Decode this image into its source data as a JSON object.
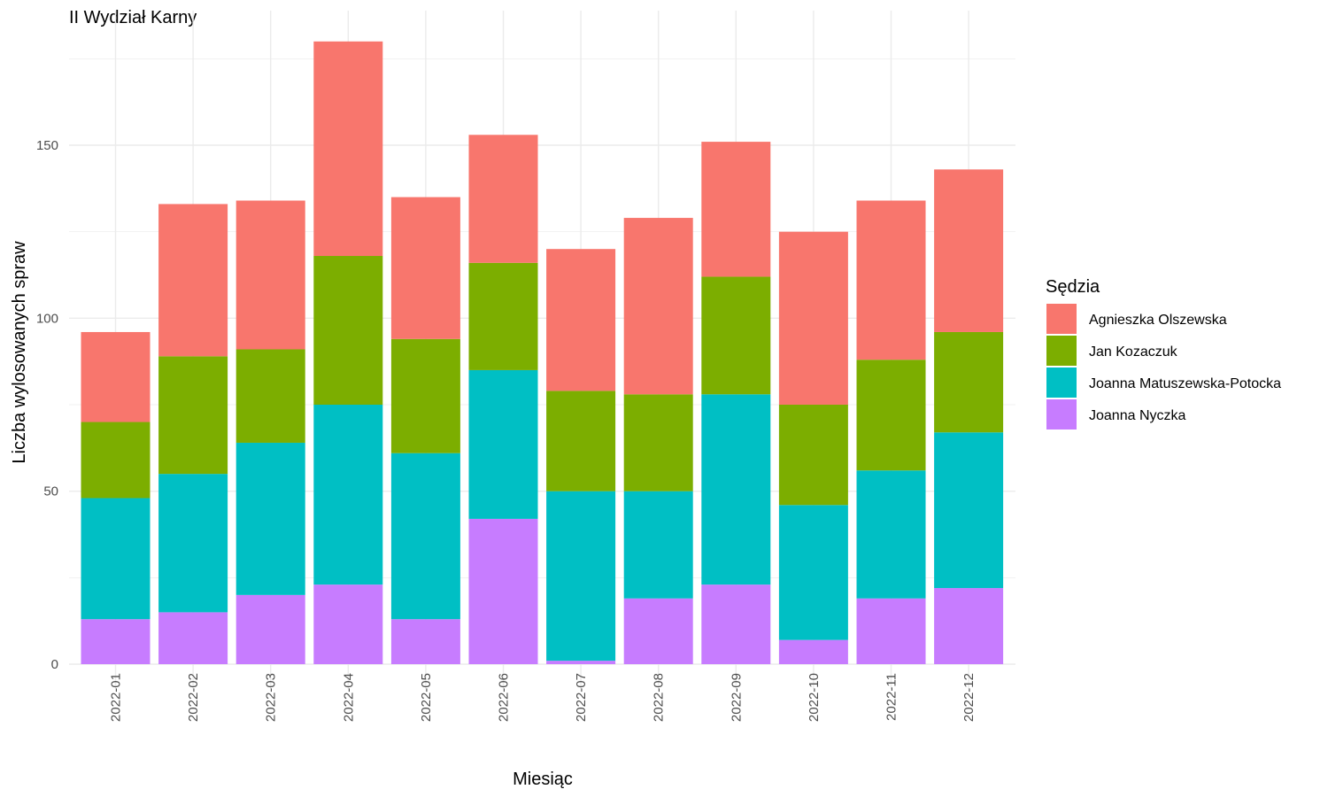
{
  "chart_data": {
    "type": "bar",
    "stacked": true,
    "title": "II Wydział Karny",
    "xlabel": "Miesiąc",
    "ylabel": "Liczba wylosowanych spraw",
    "ylim": [
      0,
      180
    ],
    "yticks": [
      0,
      50,
      100,
      150
    ],
    "grid": true,
    "legend_title": "Sędzia",
    "legend_position": "right",
    "categories": [
      "2022-01",
      "2022-02",
      "2022-03",
      "2022-04",
      "2022-05",
      "2022-06",
      "2022-07",
      "2022-08",
      "2022-09",
      "2022-10",
      "2022-11",
      "2022-12"
    ],
    "series": [
      {
        "name": "Joanna Nyczka",
        "color": "#C77CFF",
        "values": [
          13,
          15,
          20,
          23,
          13,
          42,
          1,
          19,
          23,
          7,
          19,
          22
        ]
      },
      {
        "name": "Joanna Matuszewska-Potocka",
        "color": "#00BFC4",
        "values": [
          35,
          40,
          44,
          52,
          48,
          43,
          49,
          31,
          55,
          39,
          37,
          45
        ]
      },
      {
        "name": "Jan Kozaczuk",
        "color": "#7CAE00",
        "values": [
          22,
          34,
          27,
          43,
          33,
          31,
          29,
          28,
          34,
          29,
          32,
          29
        ]
      },
      {
        "name": "Agnieszka Olszewska",
        "color": "#F8766D",
        "values": [
          26,
          44,
          43,
          62,
          41,
          37,
          41,
          51,
          39,
          50,
          46,
          47
        ]
      }
    ],
    "legend_order": [
      "Agnieszka Olszewska",
      "Jan Kozaczuk",
      "Joanna Matuszewska-Potocka",
      "Joanna Nyczka"
    ]
  }
}
